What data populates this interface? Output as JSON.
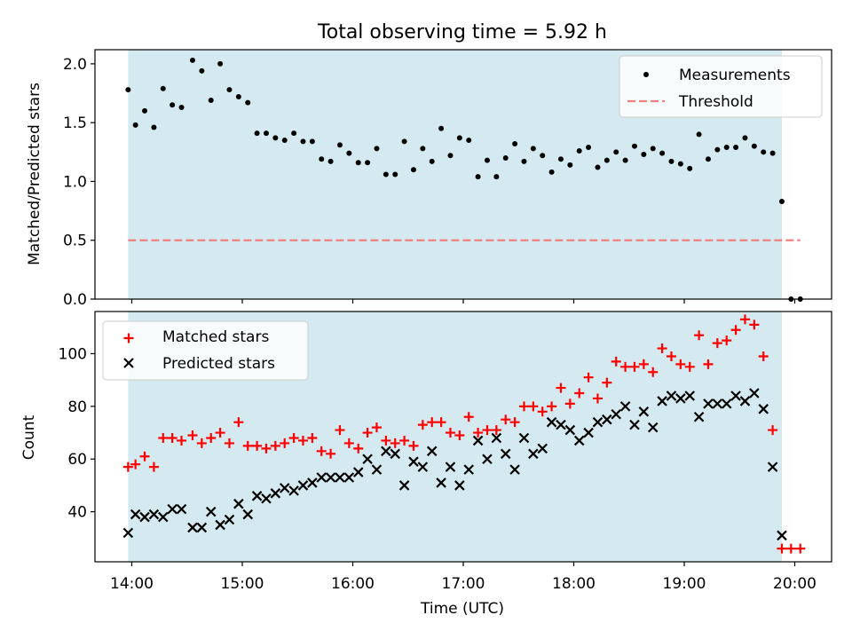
{
  "chart_data": [
    {
      "type": "scatter",
      "title": "Total observing time = 5.92 h",
      "xlabel": "",
      "ylabel": "Matched/Predicted stars",
      "xlim": [
        "13:40",
        "20:20"
      ],
      "ylim": [
        0,
        2.12
      ],
      "y_ticks": [
        "0.0",
        "0.5",
        "1.0",
        "1.5",
        "2.0"
      ],
      "shaded_region": {
        "start": "13:58",
        "end": "19:53",
        "color": "#d4eaf0"
      },
      "legend_position": "upper right",
      "series": [
        {
          "name": "Measurements",
          "marker": "dot",
          "color": "#000000",
          "points": [
            [
              "13:58",
              1.78
            ],
            [
              "14:02",
              1.48
            ],
            [
              "14:07",
              1.6
            ],
            [
              "14:12",
              1.46
            ],
            [
              "14:17",
              1.79
            ],
            [
              "14:22",
              1.65
            ],
            [
              "14:27",
              1.63
            ],
            [
              "14:33",
              2.03
            ],
            [
              "14:38",
              1.94
            ],
            [
              "14:43",
              1.69
            ],
            [
              "14:48",
              2.0
            ],
            [
              "14:53",
              1.78
            ],
            [
              "14:58",
              1.72
            ],
            [
              "15:03",
              1.67
            ],
            [
              "15:08",
              1.41
            ],
            [
              "15:13",
              1.41
            ],
            [
              "15:18",
              1.37
            ],
            [
              "15:23",
              1.35
            ],
            [
              "15:28",
              1.41
            ],
            [
              "15:33",
              1.34
            ],
            [
              "15:38",
              1.34
            ],
            [
              "15:43",
              1.19
            ],
            [
              "15:48",
              1.17
            ],
            [
              "15:53",
              1.31
            ],
            [
              "15:58",
              1.24
            ],
            [
              "16:03",
              1.16
            ],
            [
              "16:08",
              1.16
            ],
            [
              "16:13",
              1.28
            ],
            [
              "16:18",
              1.06
            ],
            [
              "16:23",
              1.06
            ],
            [
              "16:28",
              1.34
            ],
            [
              "16:33",
              1.1
            ],
            [
              "16:38",
              1.28
            ],
            [
              "16:43",
              1.17
            ],
            [
              "16:48",
              1.45
            ],
            [
              "16:53",
              1.22
            ],
            [
              "16:58",
              1.37
            ],
            [
              "17:03",
              1.35
            ],
            [
              "17:08",
              1.04
            ],
            [
              "17:13",
              1.18
            ],
            [
              "17:18",
              1.04
            ],
            [
              "17:23",
              1.2
            ],
            [
              "17:28",
              1.32
            ],
            [
              "17:33",
              1.17
            ],
            [
              "17:38",
              1.28
            ],
            [
              "17:43",
              1.22
            ],
            [
              "17:48",
              1.08
            ],
            [
              "17:53",
              1.19
            ],
            [
              "17:58",
              1.14
            ],
            [
              "18:03",
              1.26
            ],
            [
              "18:08",
              1.29
            ],
            [
              "18:13",
              1.12
            ],
            [
              "18:18",
              1.18
            ],
            [
              "18:23",
              1.25
            ],
            [
              "18:28",
              1.18
            ],
            [
              "18:33",
              1.3
            ],
            [
              "18:38",
              1.23
            ],
            [
              "18:43",
              1.28
            ],
            [
              "18:48",
              1.24
            ],
            [
              "18:53",
              1.17
            ],
            [
              "18:58",
              1.15
            ],
            [
              "19:03",
              1.11
            ],
            [
              "19:08",
              1.4
            ],
            [
              "19:13",
              1.19
            ],
            [
              "19:18",
              1.27
            ],
            [
              "19:23",
              1.29
            ],
            [
              "19:28",
              1.29
            ],
            [
              "19:33",
              1.37
            ],
            [
              "19:38",
              1.3
            ],
            [
              "19:43",
              1.25
            ],
            [
              "19:48",
              1.24
            ],
            [
              "19:53",
              0.83
            ],
            [
              "19:58",
              0.0
            ],
            [
              "20:03",
              0.0
            ]
          ]
        },
        {
          "name": "Threshold",
          "marker": "dashed-line",
          "color": "#f08080",
          "points": [
            [
              "13:58",
              0.5
            ],
            [
              "20:03",
              0.5
            ]
          ]
        }
      ]
    },
    {
      "type": "scatter",
      "xlabel": "Time (UTC)",
      "ylabel": "Count",
      "xlim": [
        "13:40",
        "20:20"
      ],
      "ylim": [
        21,
        116
      ],
      "x_ticks": [
        "14:00",
        "15:00",
        "16:00",
        "17:00",
        "18:00",
        "19:00",
        "20:00"
      ],
      "y_ticks": [
        "40",
        "60",
        "80",
        "100"
      ],
      "shaded_region": {
        "start": "13:58",
        "end": "19:53",
        "color": "#d4eaf0"
      },
      "legend_position": "upper left",
      "series": [
        {
          "name": "Matched stars",
          "marker": "plus",
          "color": "#ff0000",
          "points": [
            [
              "13:58",
              57
            ],
            [
              "14:02",
              58
            ],
            [
              "14:07",
              61
            ],
            [
              "14:12",
              57
            ],
            [
              "14:17",
              68
            ],
            [
              "14:22",
              68
            ],
            [
              "14:27",
              67
            ],
            [
              "14:33",
              69
            ],
            [
              "14:38",
              66
            ],
            [
              "14:43",
              68
            ],
            [
              "14:48",
              70
            ],
            [
              "14:53",
              66
            ],
            [
              "14:58",
              74
            ],
            [
              "15:03",
              65
            ],
            [
              "15:08",
              65
            ],
            [
              "15:13",
              64
            ],
            [
              "15:18",
              65
            ],
            [
              "15:23",
              66
            ],
            [
              "15:28",
              68
            ],
            [
              "15:33",
              67
            ],
            [
              "15:38",
              68
            ],
            [
              "15:43",
              63
            ],
            [
              "15:48",
              62
            ],
            [
              "15:53",
              71
            ],
            [
              "15:58",
              66
            ],
            [
              "16:03",
              64
            ],
            [
              "16:08",
              70
            ],
            [
              "16:13",
              72
            ],
            [
              "16:18",
              67
            ],
            [
              "16:23",
              66
            ],
            [
              "16:28",
              67
            ],
            [
              "16:33",
              65
            ],
            [
              "16:38",
              73
            ],
            [
              "16:43",
              74
            ],
            [
              "16:48",
              74
            ],
            [
              "16:53",
              70
            ],
            [
              "16:58",
              69
            ],
            [
              "17:03",
              76
            ],
            [
              "17:08",
              70
            ],
            [
              "17:13",
              71
            ],
            [
              "17:18",
              71
            ],
            [
              "17:23",
              75
            ],
            [
              "17:28",
              74
            ],
            [
              "17:33",
              80
            ],
            [
              "17:38",
              80
            ],
            [
              "17:43",
              78
            ],
            [
              "17:48",
              80
            ],
            [
              "17:53",
              87
            ],
            [
              "17:58",
              81
            ],
            [
              "18:03",
              85
            ],
            [
              "18:08",
              91
            ],
            [
              "18:13",
              83
            ],
            [
              "18:18",
              89
            ],
            [
              "18:23",
              97
            ],
            [
              "18:28",
              95
            ],
            [
              "18:33",
              95
            ],
            [
              "18:38",
              96
            ],
            [
              "18:43",
              93
            ],
            [
              "18:48",
              102
            ],
            [
              "18:53",
              99
            ],
            [
              "18:58",
              96
            ],
            [
              "19:03",
              95
            ],
            [
              "19:08",
              107
            ],
            [
              "19:13",
              96
            ],
            [
              "19:18",
              104
            ],
            [
              "19:23",
              105
            ],
            [
              "19:28",
              109
            ],
            [
              "19:33",
              113
            ],
            [
              "19:38",
              111
            ],
            [
              "19:43",
              99
            ],
            [
              "19:48",
              71
            ],
            [
              "19:53",
              26
            ],
            [
              "19:58",
              26
            ],
            [
              "20:03",
              26
            ]
          ]
        },
        {
          "name": "Predicted stars",
          "marker": "x",
          "color": "#000000",
          "points": [
            [
              "13:58",
              32
            ],
            [
              "14:02",
              39
            ],
            [
              "14:07",
              38
            ],
            [
              "14:12",
              39
            ],
            [
              "14:17",
              38
            ],
            [
              "14:22",
              41
            ],
            [
              "14:27",
              41
            ],
            [
              "14:33",
              34
            ],
            [
              "14:38",
              34
            ],
            [
              "14:43",
              40
            ],
            [
              "14:48",
              35
            ],
            [
              "14:53",
              37
            ],
            [
              "14:58",
              43
            ],
            [
              "15:03",
              39
            ],
            [
              "15:08",
              46
            ],
            [
              "15:13",
              45
            ],
            [
              "15:18",
              47
            ],
            [
              "15:23",
              49
            ],
            [
              "15:28",
              48
            ],
            [
              "15:33",
              50
            ],
            [
              "15:38",
              51
            ],
            [
              "15:43",
              53
            ],
            [
              "15:48",
              53
            ],
            [
              "15:53",
              53
            ],
            [
              "15:58",
              53
            ],
            [
              "16:03",
              55
            ],
            [
              "16:08",
              60
            ],
            [
              "16:13",
              56
            ],
            [
              "16:18",
              63
            ],
            [
              "16:23",
              62
            ],
            [
              "16:28",
              50
            ],
            [
              "16:33",
              59
            ],
            [
              "16:38",
              57
            ],
            [
              "16:43",
              63
            ],
            [
              "16:48",
              51
            ],
            [
              "16:53",
              57
            ],
            [
              "16:58",
              50
            ],
            [
              "17:03",
              56
            ],
            [
              "17:08",
              67
            ],
            [
              "17:13",
              60
            ],
            [
              "17:18",
              68
            ],
            [
              "17:23",
              62
            ],
            [
              "17:28",
              56
            ],
            [
              "17:33",
              68
            ],
            [
              "17:38",
              62
            ],
            [
              "17:43",
              64
            ],
            [
              "17:48",
              74
            ],
            [
              "17:53",
              73
            ],
            [
              "17:58",
              71
            ],
            [
              "18:03",
              67
            ],
            [
              "18:08",
              70
            ],
            [
              "18:13",
              74
            ],
            [
              "18:18",
              75
            ],
            [
              "18:23",
              77
            ],
            [
              "18:28",
              80
            ],
            [
              "18:33",
              73
            ],
            [
              "18:38",
              78
            ],
            [
              "18:43",
              72
            ],
            [
              "18:48",
              82
            ],
            [
              "18:53",
              84
            ],
            [
              "18:58",
              83
            ],
            [
              "19:03",
              84
            ],
            [
              "19:08",
              76
            ],
            [
              "19:13",
              81
            ],
            [
              "19:18",
              81
            ],
            [
              "19:23",
              81
            ],
            [
              "19:28",
              84
            ],
            [
              "19:33",
              82
            ],
            [
              "19:38",
              85
            ],
            [
              "19:43",
              79
            ],
            [
              "19:48",
              57
            ],
            [
              "19:53",
              31
            ]
          ]
        }
      ]
    }
  ]
}
